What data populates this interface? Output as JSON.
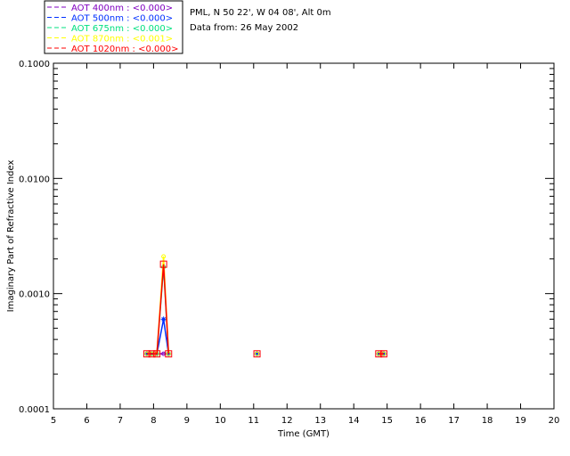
{
  "chart_data": {
    "type": "line",
    "header": {
      "location": "PML, N 50 22', W 04 08', Alt 0m",
      "date": "Data from: 26 May 2002"
    },
    "xlabel": "Time (GMT)",
    "ylabel": "Imaginary Part of Refractive Index",
    "xlim": [
      5,
      20
    ],
    "ylim": [
      0.0001,
      0.1
    ],
    "yscale": "log",
    "xticks": [
      "5",
      "6",
      "7",
      "8",
      "9",
      "10",
      "11",
      "12",
      "13",
      "14",
      "15",
      "16",
      "17",
      "18",
      "19",
      "20"
    ],
    "yticks": [
      {
        "v": 0.0001,
        "label": "0.0001"
      },
      {
        "v": 0.001,
        "label": "0.0010"
      },
      {
        "v": 0.01,
        "label": "0.0100"
      },
      {
        "v": 0.1,
        "label": "0.1000"
      }
    ],
    "x": [
      7.8,
      7.95,
      8.1,
      8.3,
      8.45,
      11.1,
      14.75,
      14.9
    ],
    "series": [
      {
        "name": "AOT  400nm : <0.000>",
        "color": "#8000c0",
        "values": [
          0.0003,
          0.0003,
          0.0003,
          0.0003,
          0.0003,
          0.0003,
          0.0003,
          0.0003
        ]
      },
      {
        "name": "AOT  500nm : <0.000>",
        "color": "#0030ff",
        "values": [
          0.0003,
          0.0003,
          0.0003,
          0.0006,
          0.0003,
          0.0003,
          0.0003,
          0.0003
        ]
      },
      {
        "name": "AOT  675nm : <0.000>",
        "color": "#00e080",
        "values": [
          0.0003,
          0.0003,
          0.0003,
          0.0017,
          0.0003,
          0.0003,
          0.0003,
          0.0003
        ]
      },
      {
        "name": "AOT  870nm : <0.001>",
        "color": "#ffff00",
        "values": [
          0.0003,
          0.0003,
          0.0003,
          0.0021,
          0.0003,
          0.0003,
          0.0003,
          0.0003
        ]
      },
      {
        "name": "AOT 1020nm : <0.000>",
        "color": "#ff0000",
        "values": [
          0.0003,
          0.0003,
          0.0003,
          0.0018,
          0.0003,
          0.0003,
          0.0003,
          0.0003
        ]
      }
    ]
  }
}
